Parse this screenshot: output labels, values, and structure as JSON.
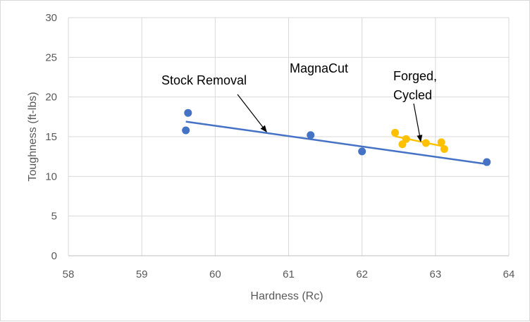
{
  "chart_data": {
    "type": "scatter",
    "title": "",
    "xlabel": "Hardness (Rc)",
    "ylabel": "Toughness (ft-lbs)",
    "xlim": [
      58,
      64
    ],
    "ylim": [
      0,
      30
    ],
    "x_ticks": [
      58,
      59,
      60,
      61,
      62,
      63,
      64
    ],
    "y_ticks": [
      0,
      5,
      10,
      15,
      20,
      25,
      30
    ],
    "grid": true,
    "legend": "none",
    "series": [
      {
        "name": "Stock Removal",
        "color": "#4472c4",
        "points": [
          [
            59.6,
            15.8
          ],
          [
            59.63,
            18.0
          ],
          [
            61.3,
            15.2
          ],
          [
            62.0,
            13.15
          ],
          [
            63.7,
            11.8
          ]
        ],
        "trendline": [
          [
            59.6,
            16.9
          ],
          [
            63.7,
            11.55
          ]
        ]
      },
      {
        "name": "Forged, Cycled",
        "color": "#ffc000",
        "points": [
          [
            62.45,
            15.5
          ],
          [
            62.55,
            14.05
          ],
          [
            62.6,
            14.7
          ],
          [
            62.87,
            14.2
          ],
          [
            63.08,
            14.3
          ],
          [
            63.12,
            13.45
          ]
        ],
        "trendline": [
          [
            62.45,
            15.05
          ],
          [
            63.12,
            13.75
          ]
        ]
      }
    ],
    "annotations": [
      {
        "name": "stock-removal",
        "lines": [
          "Stock Removal"
        ],
        "arrow_to": [
          60.7,
          15.6
        ]
      },
      {
        "name": "magnacut",
        "lines": [
          "MagnaCut"
        ]
      },
      {
        "name": "forged-cycled",
        "lines": [
          "Forged,",
          "Cycled"
        ],
        "arrow_to": [
          62.8,
          14.4
        ]
      }
    ]
  }
}
